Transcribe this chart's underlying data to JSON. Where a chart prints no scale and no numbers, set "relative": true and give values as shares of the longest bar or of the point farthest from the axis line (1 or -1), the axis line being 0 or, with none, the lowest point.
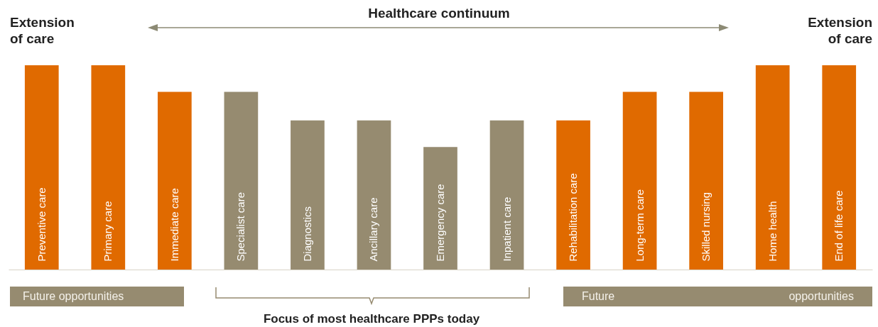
{
  "chart_data": {
    "type": "bar",
    "relative": true,
    "categories": [
      "Preventive care",
      "Primary care",
      "Immediate care",
      "Specialist care",
      "Diagnostics",
      "Ancillary care",
      "Emergency care",
      "Inpatient care",
      "Rehabilitation care",
      "Long-term care",
      "Skilled nursing",
      "Home health",
      "End of life care"
    ],
    "values": [
      1,
      1,
      0.87,
      0.87,
      0.73,
      0.73,
      0.6,
      0.73,
      0.73,
      0.87,
      0.87,
      1,
      1
    ],
    "colors": [
      "#e06a00",
      "#e06a00",
      "#e06a00",
      "#968b70",
      "#968b70",
      "#968b70",
      "#968b70",
      "#968b70",
      "#e06a00",
      "#e06a00",
      "#e06a00",
      "#e06a00",
      "#e06a00"
    ],
    "annotations": [
      "Healthcare continuum",
      "Extension of care",
      "Extension of care",
      "Future opportunities",
      "Future opportunities",
      "Focus of most healthcare PPPs today"
    ]
  }
}
